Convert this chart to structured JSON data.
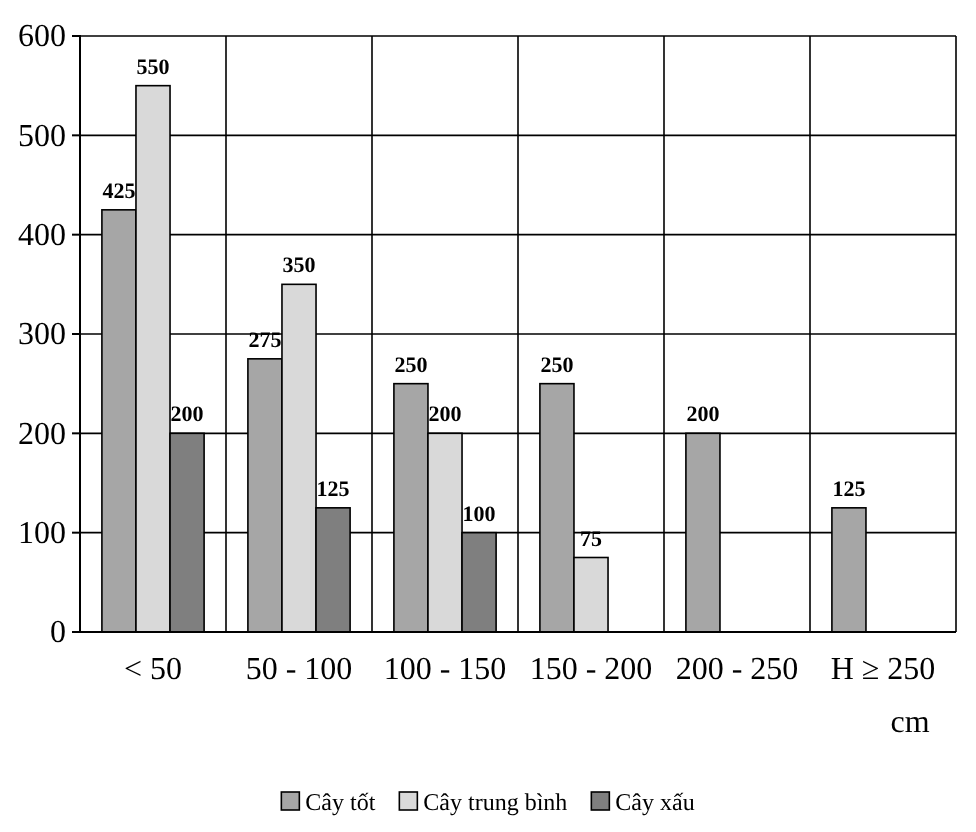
{
  "chart_data": {
    "type": "bar",
    "xlabel": "cm",
    "categories": [
      "< 50",
      "50 - 100",
      "100 - 150",
      "150 - 200",
      "200 - 250",
      "H ≥ 250"
    ],
    "series": [
      {
        "name": "Cây tốt",
        "color": "#a6a6a6",
        "values": [
          425,
          275,
          250,
          250,
          200,
          125
        ]
      },
      {
        "name": "Cây trung bình",
        "color": "#d9d9d9",
        "values": [
          550,
          350,
          200,
          75,
          null,
          null
        ]
      },
      {
        "name": "Cây xấu",
        "color": "#7f7f7f",
        "values": [
          200,
          125,
          100,
          null,
          null,
          null
        ]
      }
    ],
    "ylim": [
      0,
      600
    ],
    "yticks": [
      0,
      100,
      200,
      300,
      400,
      500,
      600
    ],
    "grid": true,
    "data_labels": true,
    "legend": "bottom"
  }
}
